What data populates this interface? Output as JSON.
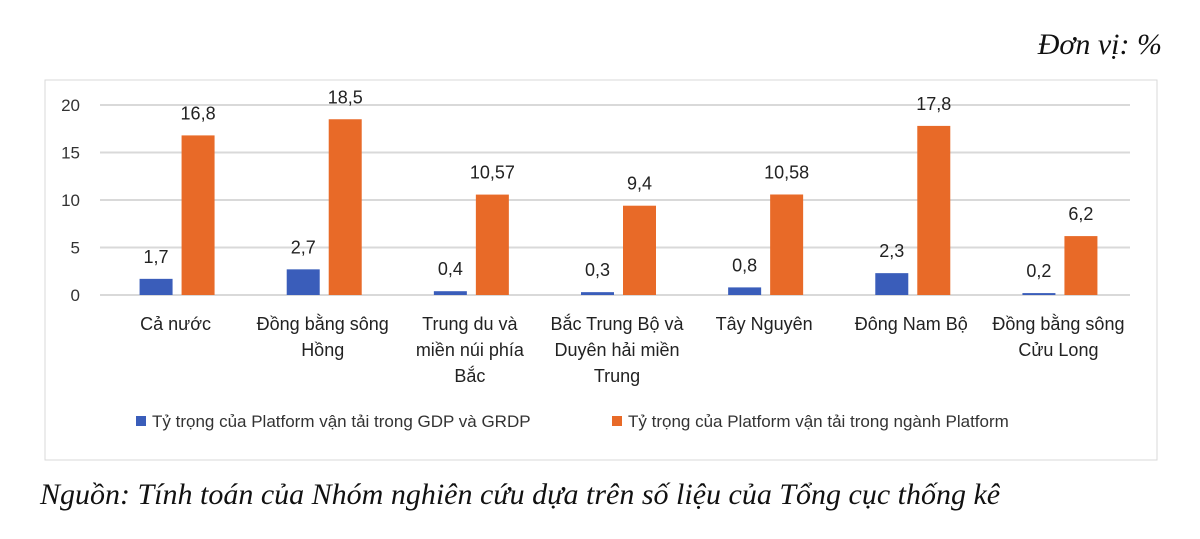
{
  "unit_label": "Đơn vị: %",
  "source": "Nguồn: Tính toán của Nhóm nghiên cứu dựa trên số liệu của Tổng cục thống kê",
  "chart_data": {
    "type": "bar",
    "categories": [
      "Cả nước",
      "Đồng bằng sông Hồng",
      "Trung du và miền núi phía Bắc",
      "Bắc Trung Bộ và Duyên hải miền Trung",
      "Tây Nguyên",
      "Đông Nam Bộ",
      "Đồng bằng sông Cửu Long"
    ],
    "category_lines": [
      [
        "Cả nước"
      ],
      [
        "Đồng bằng sông",
        "Hồng"
      ],
      [
        "Trung du và",
        "miền núi phía",
        "Bắc"
      ],
      [
        "Bắc Trung Bộ và",
        "Duyên hải miền",
        "Trung"
      ],
      [
        "Tây Nguyên"
      ],
      [
        "Đông Nam Bộ"
      ],
      [
        "Đồng bằng sông",
        "Cửu Long"
      ]
    ],
    "series": [
      {
        "name": "Tỷ trọng của Platform vận tải trong GDP và GRDP",
        "color": "#3a5dba",
        "values": [
          1.7,
          2.7,
          0.4,
          0.3,
          0.8,
          2.3,
          0.2
        ],
        "labels": [
          "1,7",
          "2,7",
          "0,4",
          "0,3",
          "0,8",
          "2,3",
          "0,2"
        ]
      },
      {
        "name": "Tỷ trọng của Platform vận tải trong ngành Platform",
        "color": "#e86a28",
        "values": [
          16.8,
          18.5,
          10.57,
          9.4,
          10.58,
          17.8,
          6.2
        ],
        "labels": [
          "16,8",
          "18,5",
          "10,57",
          "9,4",
          "10,58",
          "17,8",
          "6,2"
        ]
      }
    ],
    "yticks": [
      0,
      5,
      10,
      15,
      20
    ],
    "ylim": [
      0,
      20
    ],
    "grid": true,
    "legend": "bottom"
  }
}
